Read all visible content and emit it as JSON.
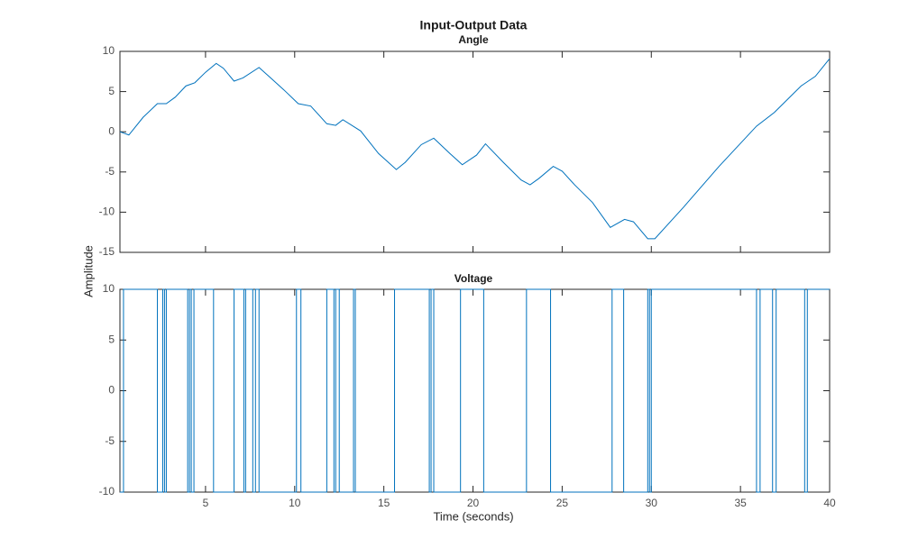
{
  "figure": {
    "title": "Input-Output Data",
    "xlabel": "Time (seconds)",
    "ylabel": "Amplitude"
  },
  "chart_data": [
    {
      "type": "line",
      "title": "Angle",
      "color": "#0072bd",
      "x": [
        0.2,
        0.7,
        1.5,
        2.3,
        2.8,
        3.3,
        3.9,
        4.4,
        5.0,
        5.6,
        6.0,
        6.6,
        7.1,
        8.0,
        8.6,
        9.4,
        10.2,
        10.9,
        11.8,
        12.3,
        12.7,
        13.7,
        14.7,
        15.7,
        16.2,
        17.1,
        17.8,
        18.7,
        19.4,
        20.2,
        20.7,
        21.7,
        22.7,
        23.2,
        23.7,
        24.5,
        25.0,
        25.7,
        26.7,
        27.7,
        28.5,
        29.0,
        29.8,
        30.2,
        31.8,
        33.8,
        35.9,
        36.9,
        38.4,
        39.2,
        40.0
      ],
      "values": [
        0.0,
        -0.4,
        1.8,
        3.5,
        3.5,
        4.3,
        5.7,
        6.1,
        7.4,
        8.5,
        7.9,
        6.3,
        6.7,
        8.0,
        6.8,
        5.2,
        3.5,
        3.2,
        1.0,
        0.8,
        1.5,
        0.1,
        -2.7,
        -4.7,
        -3.8,
        -1.6,
        -0.8,
        -2.7,
        -4.1,
        -2.9,
        -1.5,
        -3.8,
        -6.0,
        -6.6,
        -5.8,
        -4.3,
        -4.9,
        -6.6,
        -8.8,
        -11.9,
        -10.9,
        -11.2,
        -13.3,
        -13.3,
        -9.4,
        -4.3,
        0.7,
        2.4,
        5.7,
        6.9,
        9.1
      ],
      "xlim": [
        0.2,
        40
      ],
      "ylim": [
        -15,
        10
      ],
      "xticks": [
        5,
        10,
        15,
        20,
        25,
        30,
        35,
        40
      ],
      "yticks": [
        10,
        5,
        0,
        -5,
        -10,
        -15
      ]
    },
    {
      "type": "stairs",
      "title": "Voltage",
      "color": "#0072bd",
      "x": [
        0.2,
        0.4,
        2.3,
        2.6,
        2.7,
        2.8,
        4.0,
        4.1,
        4.2,
        4.35,
        5.45,
        6.6,
        7.15,
        7.25,
        7.65,
        7.8,
        8.0,
        10.1,
        10.35,
        11.8,
        12.2,
        12.3,
        12.5,
        13.3,
        13.4,
        15.6,
        17.55,
        17.65,
        17.8,
        19.3,
        20.6,
        23.0,
        24.35,
        27.8,
        28.45,
        29.8,
        29.9,
        30.0,
        35.9,
        36.1,
        36.8,
        37.0,
        38.6,
        38.75,
        40.0
      ],
      "values": [
        -10,
        10,
        -10,
        10,
        -10,
        10,
        -10,
        10,
        -10,
        10,
        -10,
        10,
        -10,
        10,
        -10,
        10,
        -10,
        10,
        -10,
        10,
        -10,
        10,
        -10,
        10,
        -10,
        10,
        -10,
        10,
        -10,
        10,
        -10,
        10,
        -10,
        10,
        -10,
        10,
        -10,
        10,
        -10,
        10,
        -10,
        10,
        -10,
        10,
        10
      ],
      "xlim": [
        0.2,
        40
      ],
      "ylim": [
        -10,
        10
      ],
      "xticks": [
        5,
        10,
        15,
        20,
        25,
        30,
        35,
        40
      ],
      "yticks": [
        10,
        5,
        0,
        -5,
        -10
      ]
    }
  ]
}
